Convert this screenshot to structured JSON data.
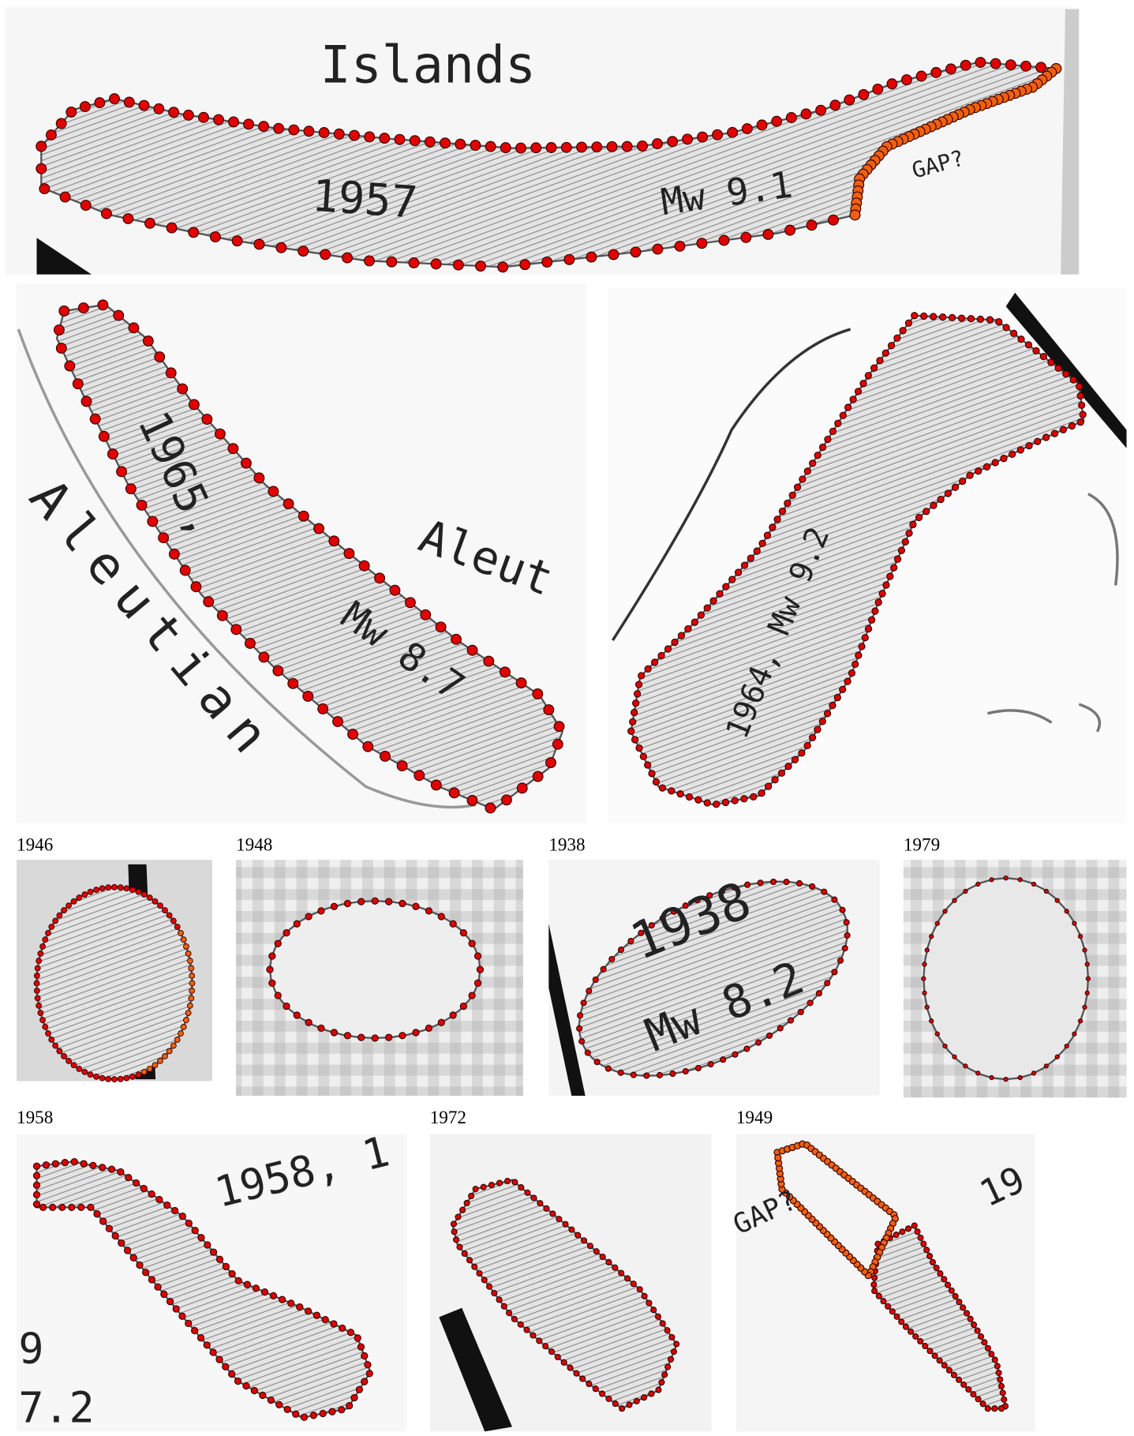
{
  "maps": {
    "top": {
      "place": "Islands",
      "year": "1957",
      "magnitude": "Mw 9.1",
      "gap": "GAP?"
    },
    "middle_left": {
      "year": "1965,",
      "magnitude": "Mw 8.7",
      "place_1": "Aleut",
      "place_2": "Aleutian"
    },
    "middle_right": {
      "label": "1964, Mw 9.2"
    }
  },
  "panels": [
    {
      "title": "1946"
    },
    {
      "title": "1948"
    },
    {
      "title": "1938",
      "labels": [
        "1938",
        "Mw 8.2"
      ]
    },
    {
      "title": "1979"
    },
    {
      "title": "1958",
      "labels": [
        "1958, 1",
        "9",
        "7.2"
      ]
    },
    {
      "title": "1972"
    },
    {
      "title": "1949",
      "labels": [
        "GAP?",
        "19"
      ]
    }
  ]
}
